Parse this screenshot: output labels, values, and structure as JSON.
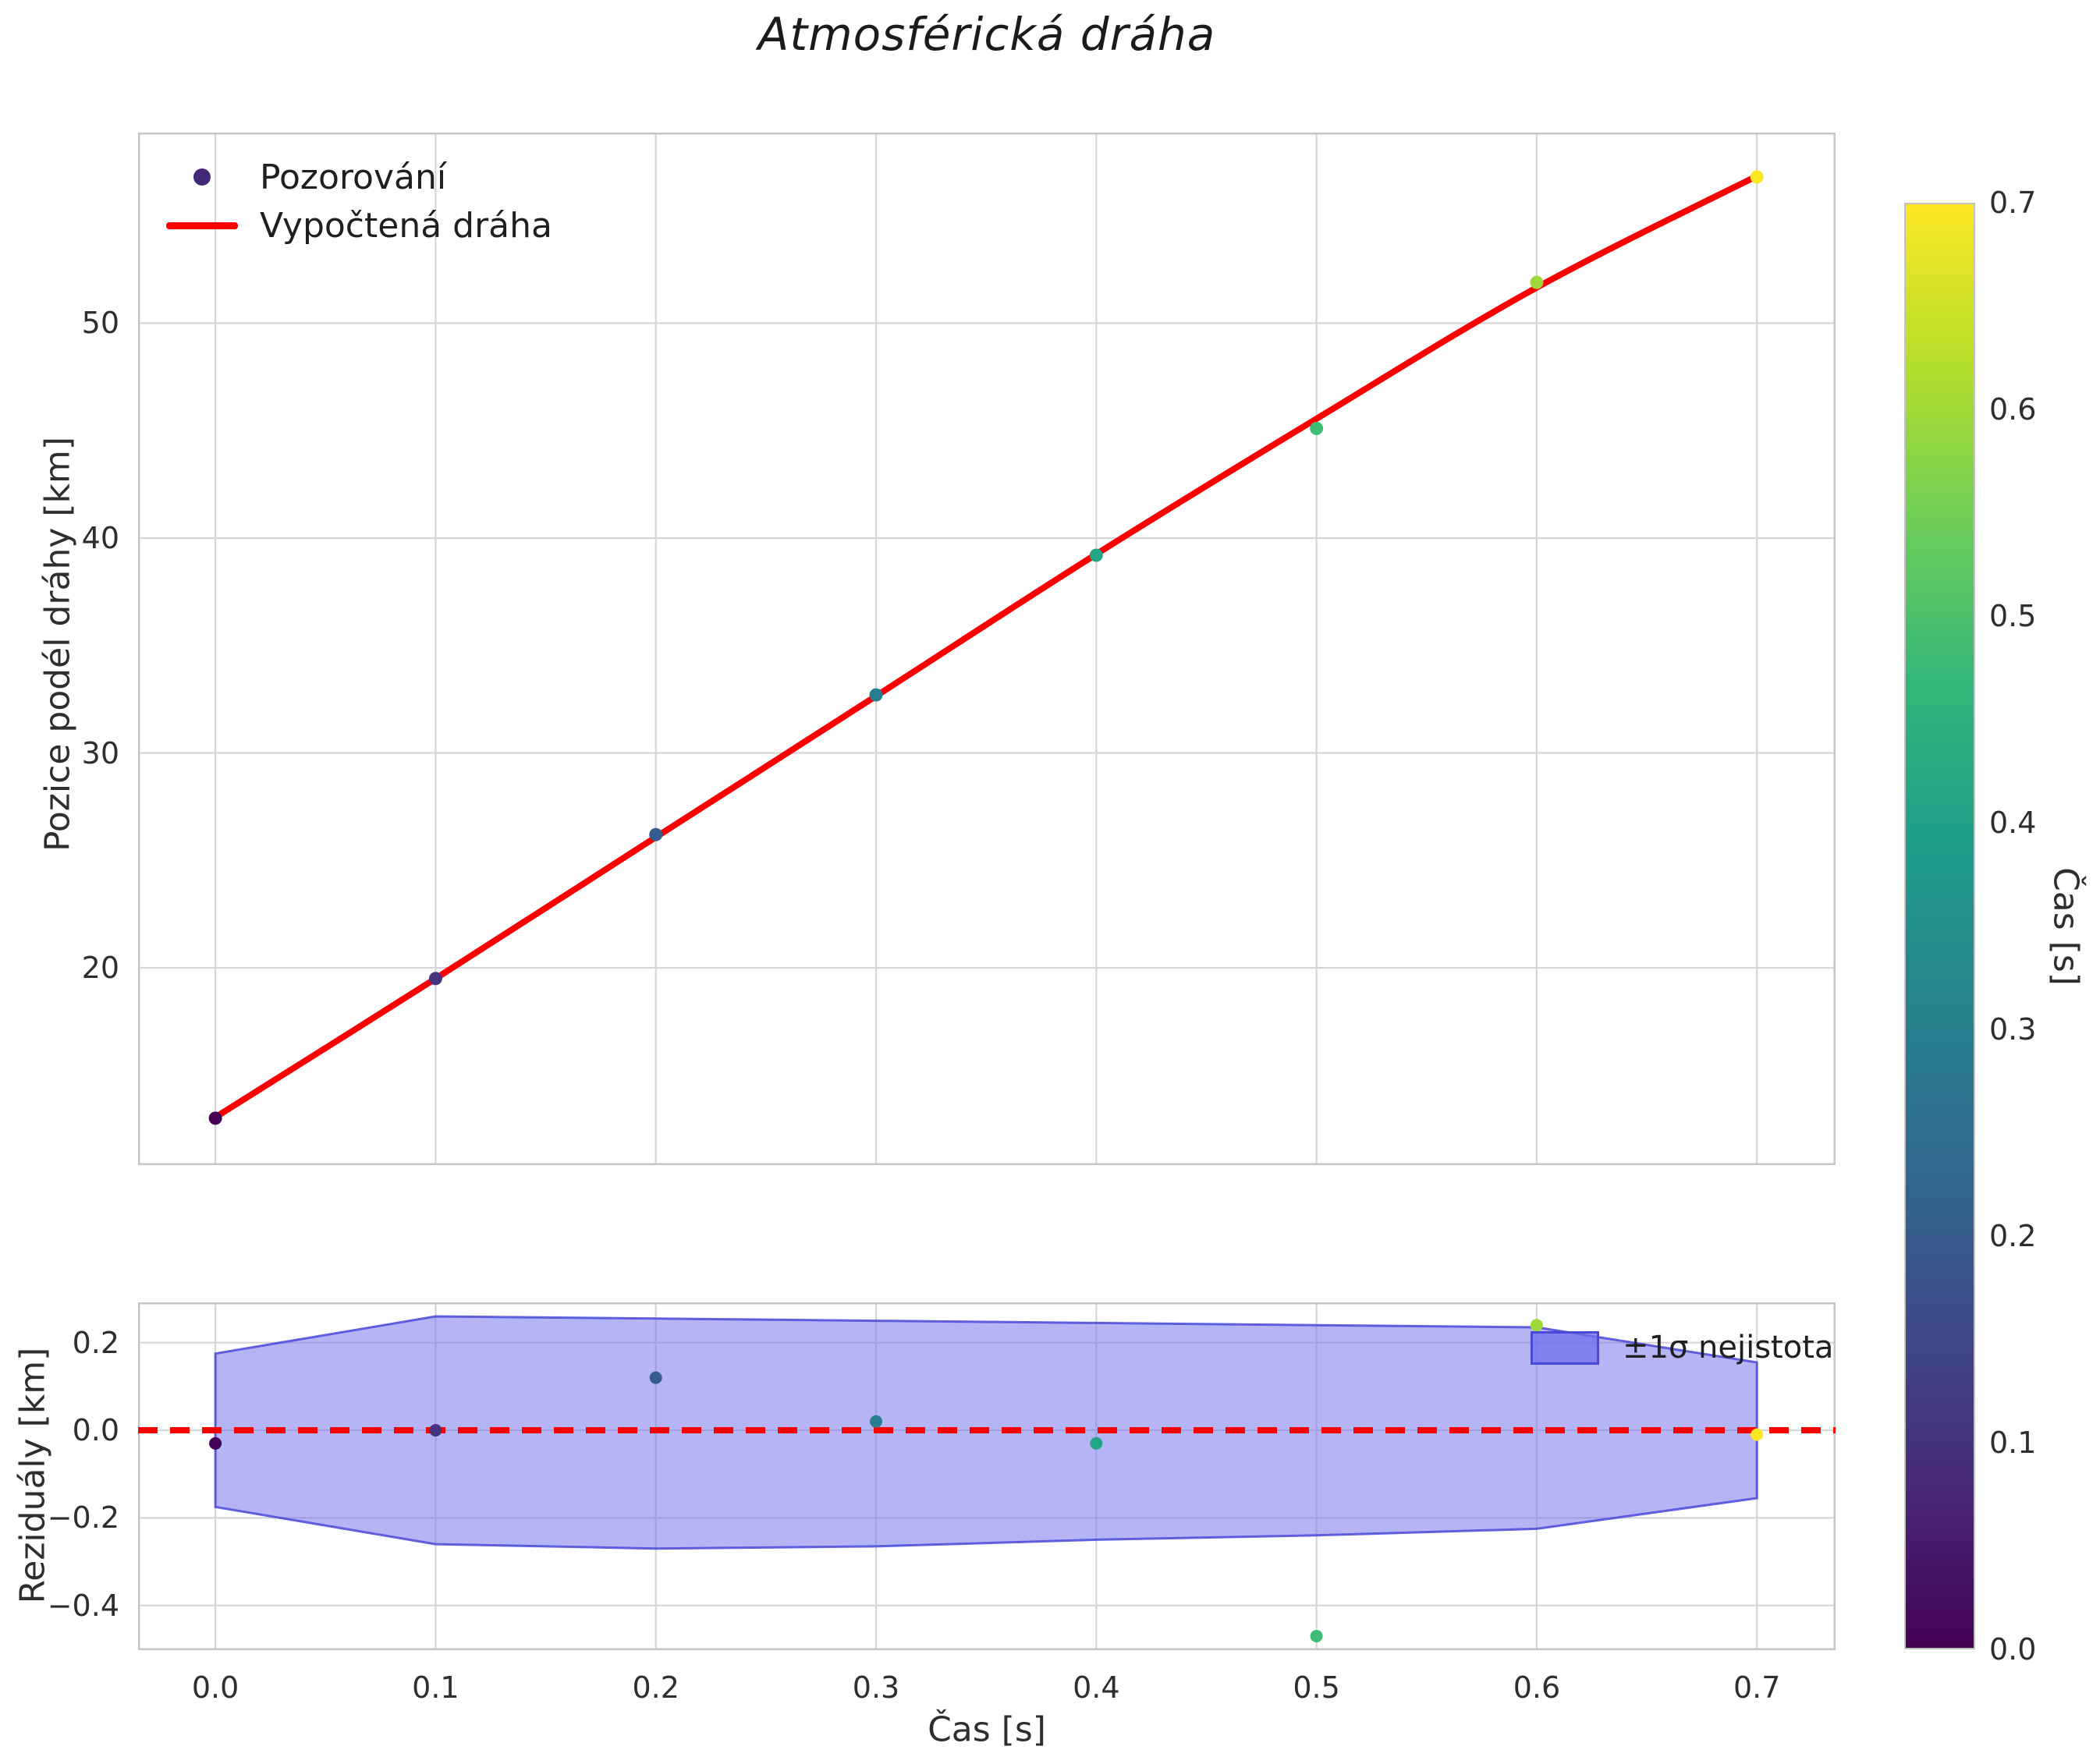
{
  "title": "Atmosférická dráha",
  "colors": {
    "fit_line": "#fa0000",
    "zero_line": "#fa0000",
    "band_fill": "#6c6cee",
    "band_edge": "#4949d8",
    "legend_marker": "#432878",
    "grid": "#d6d6d6",
    "frame": "#c6c6c6"
  },
  "colorbar": {
    "label": "Čas [s]",
    "colormap": "viridis",
    "tick_values": [
      0.0,
      0.1,
      0.2,
      0.3,
      0.4,
      0.5,
      0.6,
      0.7
    ],
    "tick_labels": [
      "0.0",
      "0.1",
      "0.2",
      "0.3",
      "0.4",
      "0.5",
      "0.6",
      "0.7"
    ]
  },
  "chart_data": [
    {
      "type": "scatter",
      "title": "Atmosférická dráha",
      "xlabel": "Čas [s]",
      "ylabel": "Pozice podél dráhy [km]",
      "legend": [
        "Pozorování",
        "Vypočtená dráha"
      ],
      "x": [
        0.0,
        0.1,
        0.2,
        0.3,
        0.4,
        0.5,
        0.6,
        0.7
      ],
      "observations": [
        13.0,
        19.5,
        26.2,
        32.7,
        39.2,
        45.1,
        51.9,
        56.8
      ],
      "point_colors": [
        "#440154",
        "#46327e",
        "#365c8d",
        "#287d8e",
        "#21a585",
        "#3fbc73",
        "#9dd93b",
        "#fde725"
      ],
      "fit_line": [
        13.05,
        19.5,
        26.08,
        32.65,
        39.25,
        45.55,
        51.66,
        56.85
      ],
      "xlim": [
        -0.0351,
        0.7357
      ],
      "ylim": [
        10.82,
        58.87
      ],
      "xticks": [
        0.0,
        0.1,
        0.2,
        0.3,
        0.4,
        0.5,
        0.6,
        0.7
      ],
      "yticks": [
        20,
        30,
        40,
        50
      ],
      "ytick_labels": [
        "20",
        "30",
        "40",
        "50"
      ],
      "grid": true,
      "legend_position": "upper left"
    },
    {
      "type": "scatter",
      "xlabel": "Čas [s]",
      "ylabel": "Reziduály [km]",
      "legend": [
        "±1σ nejistota"
      ],
      "x": [
        0.0,
        0.1,
        0.2,
        0.3,
        0.4,
        0.5,
        0.6,
        0.7
      ],
      "residuals": [
        -0.03,
        0.0,
        0.12,
        0.02,
        -0.03,
        -0.47,
        0.24,
        -0.01
      ],
      "point_colors": [
        "#440154",
        "#46327e",
        "#365c8d",
        "#287d8e",
        "#21a585",
        "#3fbc73",
        "#9dd93b",
        "#fde725"
      ],
      "band_upper": [
        0.175,
        0.26,
        0.255,
        0.25,
        0.245,
        0.24,
        0.235,
        0.155
      ],
      "band_lower": [
        -0.175,
        -0.26,
        -0.27,
        -0.265,
        -0.25,
        -0.24,
        -0.225,
        -0.155
      ],
      "zero_line": 0.0,
      "xlim": [
        -0.0351,
        0.7357
      ],
      "ylim": [
        -0.502,
        0.292
      ],
      "xticks": [
        0.0,
        0.1,
        0.2,
        0.3,
        0.4,
        0.5,
        0.6,
        0.7
      ],
      "xtick_labels": [
        "0.0",
        "0.1",
        "0.2",
        "0.3",
        "0.4",
        "0.5",
        "0.6",
        "0.7"
      ],
      "yticks": [
        0.2,
        0.0,
        -0.2,
        -0.4
      ],
      "ytick_labels": [
        "0.2",
        "0.0",
        "−0.2",
        "−0.4"
      ],
      "grid": true,
      "legend_position": "upper right"
    }
  ]
}
